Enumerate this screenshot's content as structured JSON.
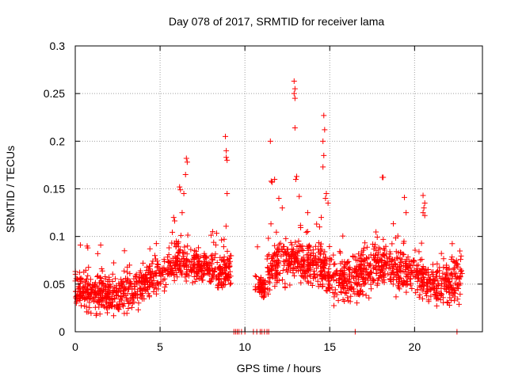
{
  "chart_data": {
    "type": "scatter",
    "title": "Day 078 of 2017, SRMTID for receiver lama",
    "xlabel": "GPS time / hours",
    "ylabel": "SRMTID / TECUs",
    "xlim": [
      0,
      24
    ],
    "ylim": [
      0,
      0.3
    ],
    "grid": true,
    "marker": "+",
    "color": "#ff0000",
    "x_ticks": [
      0,
      5,
      10,
      15,
      20
    ],
    "x_tick_labels": [
      "0",
      "5",
      "10",
      "15",
      "20"
    ],
    "y_ticks": [
      0,
      0.05,
      0.1,
      0.15,
      0.2,
      0.25,
      0.3
    ],
    "y_tick_labels": [
      "0",
      "0.05",
      "0.1",
      "0.15",
      "0.2",
      "0.25",
      "0.3"
    ],
    "segments": [
      {
        "start": 0.0,
        "end": 9.2,
        "base": [
          [
            0,
            0.045
          ],
          [
            2.5,
            0.038
          ],
          [
            4,
            0.05
          ],
          [
            5,
            0.06
          ],
          [
            6,
            0.075
          ],
          [
            7,
            0.07
          ],
          [
            8,
            0.065
          ],
          [
            9.2,
            0.06
          ]
        ],
        "spread": 0.012
      },
      {
        "start": 10.6,
        "end": 11.2,
        "base": [
          [
            10.6,
            0.05
          ],
          [
            11.2,
            0.045
          ]
        ],
        "spread": 0.008
      },
      {
        "start": 11.3,
        "end": 22.8,
        "base": [
          [
            11.3,
            0.06
          ],
          [
            12,
            0.07
          ],
          [
            13,
            0.075
          ],
          [
            14,
            0.07
          ],
          [
            15,
            0.06
          ],
          [
            16,
            0.055
          ],
          [
            17,
            0.062
          ],
          [
            18,
            0.07
          ],
          [
            19,
            0.065
          ],
          [
            20,
            0.06
          ],
          [
            21,
            0.05
          ],
          [
            22,
            0.052
          ],
          [
            22.8,
            0.055
          ]
        ],
        "spread": 0.014
      }
    ],
    "outliers": [
      [
        6.15,
        0.152
      ],
      [
        6.2,
        0.149
      ],
      [
        6.55,
        0.182
      ],
      [
        6.6,
        0.178
      ],
      [
        6.5,
        0.165
      ],
      [
        6.4,
        0.145
      ],
      [
        6.3,
        0.125
      ],
      [
        5.8,
        0.12
      ],
      [
        8.85,
        0.205
      ],
      [
        8.9,
        0.19
      ],
      [
        8.9,
        0.183
      ],
      [
        8.95,
        0.18
      ],
      [
        8.95,
        0.145
      ],
      [
        11.5,
        0.2
      ],
      [
        11.55,
        0.158
      ],
      [
        11.6,
        0.157
      ],
      [
        11.75,
        0.16
      ],
      [
        12.0,
        0.14
      ],
      [
        12.2,
        0.13
      ],
      [
        12.9,
        0.263
      ],
      [
        12.95,
        0.255
      ],
      [
        12.9,
        0.25
      ],
      [
        12.95,
        0.245
      ],
      [
        12.95,
        0.214
      ],
      [
        13.05,
        0.163
      ],
      [
        13.0,
        0.16
      ],
      [
        13.2,
        0.142
      ],
      [
        13.7,
        0.125
      ],
      [
        14.65,
        0.227
      ],
      [
        14.7,
        0.212
      ],
      [
        14.6,
        0.2
      ],
      [
        14.65,
        0.185
      ],
      [
        14.6,
        0.173
      ],
      [
        14.8,
        0.145
      ],
      [
        14.75,
        0.14
      ],
      [
        14.9,
        0.135
      ],
      [
        14.5,
        0.12
      ],
      [
        14.4,
        0.11
      ],
      [
        18.1,
        0.162
      ],
      [
        18.15,
        0.162
      ],
      [
        19.4,
        0.141
      ],
      [
        19.5,
        0.125
      ],
      [
        20.5,
        0.143
      ],
      [
        20.6,
        0.135
      ],
      [
        20.55,
        0.13
      ],
      [
        20.5,
        0.125
      ],
      [
        20.6,
        0.122
      ],
      [
        0.3,
        0.091
      ],
      [
        0.7,
        0.09
      ],
      [
        1.5,
        0.091
      ],
      [
        2.9,
        0.085
      ],
      [
        4.4,
        0.087
      ]
    ],
    "zeros": [
      9.35,
      9.45,
      9.55,
      9.65,
      9.8,
      10.0,
      10.5,
      10.7,
      10.9,
      11.0,
      11.15,
      11.3,
      11.4,
      16.5,
      22.5
    ]
  }
}
